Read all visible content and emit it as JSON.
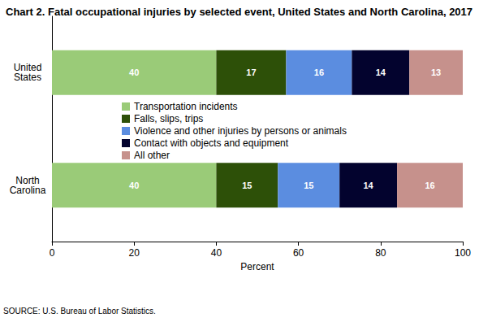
{
  "chart_data": {
    "type": "bar",
    "title": "Chart 2. Fatal occupational injuries by selected event, United States and North Carolina, 2017",
    "xlabel": "Percent",
    "annotations": [
      "SOURCE: U.S. Bureau of Labor Statistics."
    ],
    "categories": [
      "United States",
      "North Carolina"
    ],
    "series": [
      {
        "name": "Transportation incidents",
        "color": "#9acb78",
        "values": [
          40,
          40
        ]
      },
      {
        "name": "Falls, slips, trips",
        "color": "#2d5008",
        "values": [
          17,
          15
        ]
      },
      {
        "name": "Violence and other injuries by persons or animals",
        "color": "#5b8de0",
        "values": [
          16,
          15
        ]
      },
      {
        "name": "Contact with objects and equipment",
        "color": "#03032e",
        "values": [
          14,
          14
        ]
      },
      {
        "name": "All other",
        "color": "#c6918c",
        "values": [
          13,
          16
        ]
      }
    ],
    "xlim": [
      0,
      100
    ],
    "xticks": [
      0,
      20,
      40,
      60,
      80,
      100
    ],
    "orientation": "horizontal",
    "stacked": true,
    "data_labels": true,
    "grid": false,
    "legend": "center"
  }
}
